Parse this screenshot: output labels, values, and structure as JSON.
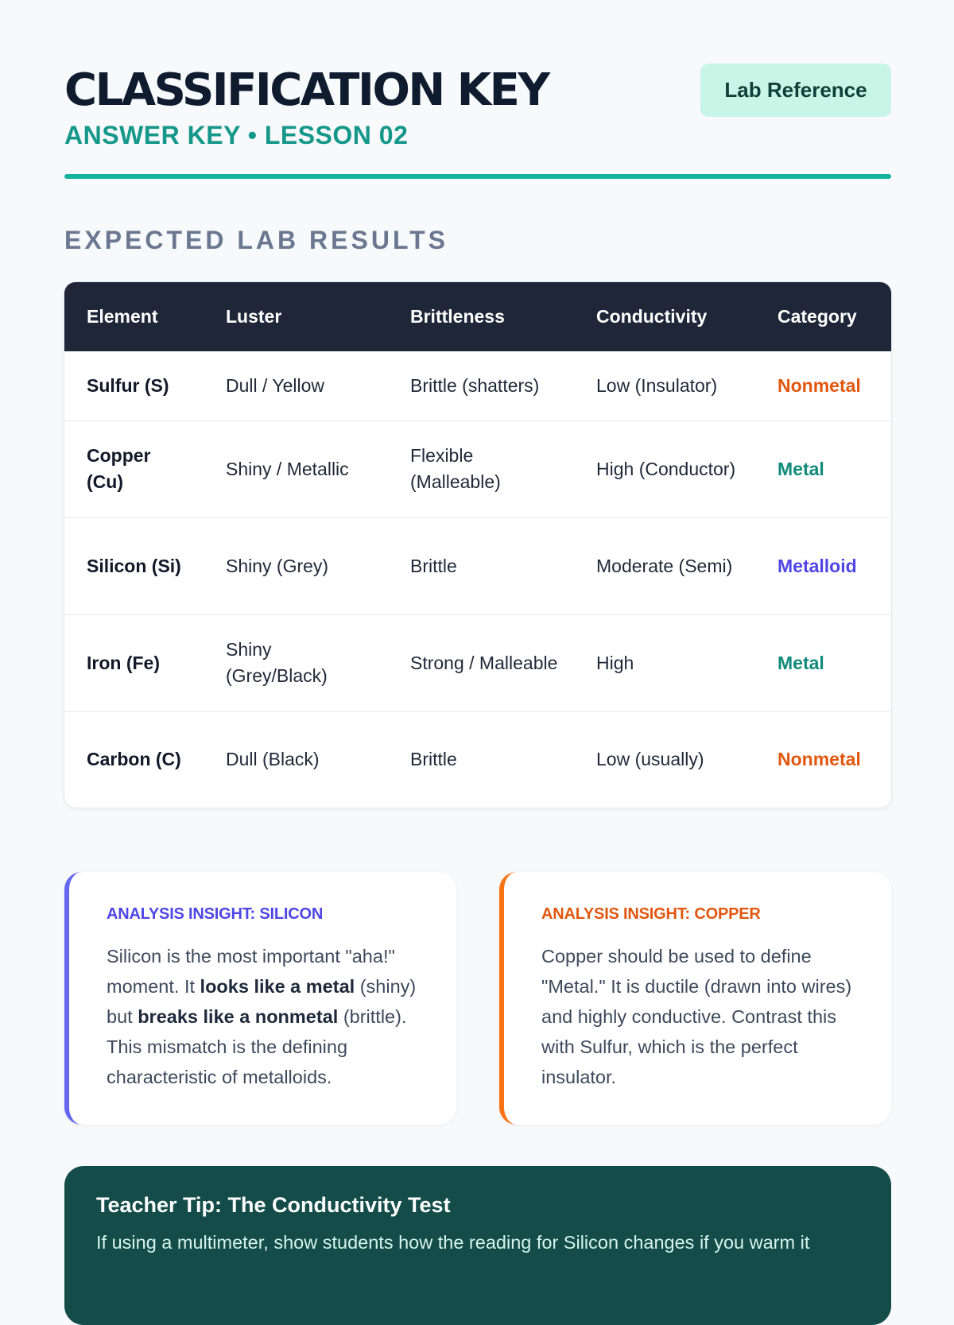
{
  "header": {
    "title": "CLASSIFICATION KEY",
    "subtitle": "ANSWER KEY • LESSON 02",
    "badge": "Lab Reference"
  },
  "section": {
    "heading": "EXPECTED LAB RESULTS"
  },
  "table": {
    "columns": [
      "Element",
      "Luster",
      "Brittleness",
      "Conductivity",
      "Category"
    ],
    "rows": [
      {
        "element": "Sulfur (S)",
        "luster": "Dull / Yellow",
        "brittleness": "Brittle (shatters)",
        "conductivity": "Low (Insulator)",
        "category": "Nonmetal"
      },
      {
        "element": "Copper (Cu)",
        "luster": "Shiny / Metallic",
        "brittleness": "Flexible (Malleable)",
        "conductivity": "High (Conductor)",
        "category": "Metal"
      },
      {
        "element": "Silicon (Si)",
        "luster": "Shiny (Grey)",
        "brittleness": "Brittle",
        "conductivity": "Moderate (Semi)",
        "category": "Metalloid"
      },
      {
        "element": "Iron (Fe)",
        "luster": "Shiny (Grey/Black)",
        "brittleness": "Strong / Malleable",
        "conductivity": "High",
        "category": "Metal"
      },
      {
        "element": "Carbon (C)",
        "luster": "Dull (Black)",
        "brittleness": "Brittle",
        "conductivity": "Low (usually)",
        "category": "Nonmetal"
      }
    ]
  },
  "insights": {
    "silicon": {
      "title": "ANALYSIS INSIGHT: SILICON",
      "text_1": "Silicon is the most important \"aha!\" moment. It ",
      "bold_1": "looks like a metal",
      "text_2": " (shiny) but ",
      "bold_2": "breaks like a nonmetal",
      "text_3": " (brittle). This mismatch is the defining characteristic of metalloids."
    },
    "copper": {
      "title": "ANALYSIS INSIGHT: COPPER",
      "body": "Copper should be used to define \"Metal.\" It is ductile (drawn into wires) and highly conductive. Contrast this with Sulfur, which is the perfect insulator."
    }
  },
  "tip": {
    "title": "Teacher Tip: The Conductivity Test",
    "body": "If using a multimeter, show students how the reading for Silicon changes if you warm it"
  },
  "colors": {
    "background": "#f7f9fb",
    "title": "#0f1b2e",
    "accent_teal": "#14b39e",
    "header_row": "#1e2638",
    "nonmetal": "#e2570f",
    "metal": "#108a7a",
    "metalloid": "#4f46e5",
    "tip_background": "#134c49"
  }
}
